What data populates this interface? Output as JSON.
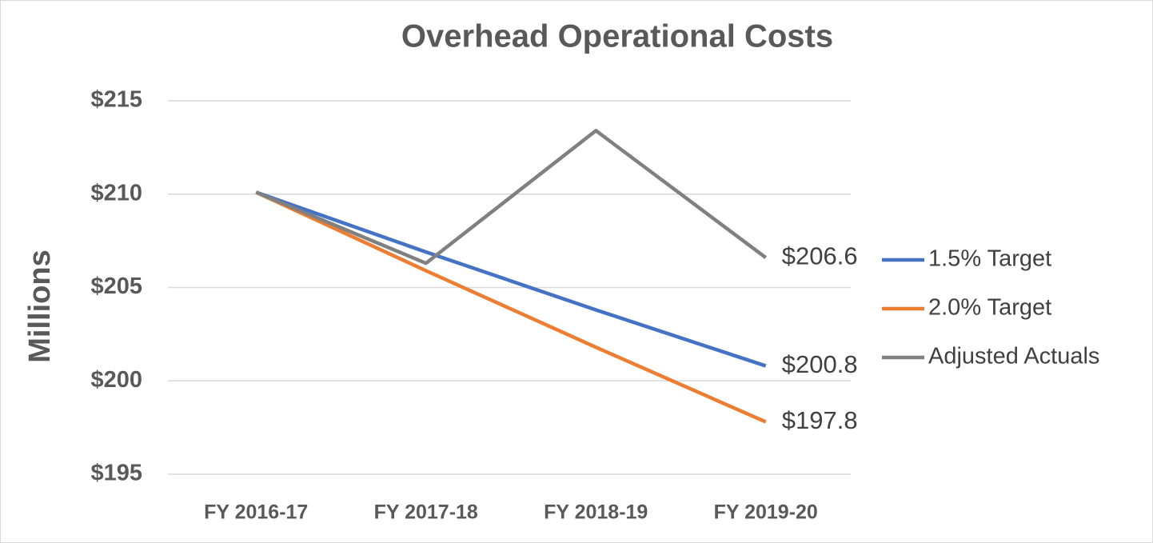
{
  "chart_data": {
    "type": "line",
    "title": "Overhead Operational  Costs",
    "y_label": "Millions",
    "categories": [
      "FY 2016-17",
      "FY 2017-18",
      "FY 2018-19",
      "FY 2019-20"
    ],
    "series": [
      {
        "name": "1.5% Target",
        "color": "#4472c4",
        "values": [
          210.1,
          206.9,
          203.8,
          200.8
        ],
        "value_labels": [
          null,
          null,
          null,
          "$200.8"
        ]
      },
      {
        "name": "2.0% Target",
        "color": "#ed7d31",
        "values": [
          210.1,
          205.9,
          201.8,
          197.8
        ],
        "value_labels": [
          null,
          null,
          null,
          "$197.8"
        ]
      },
      {
        "name": "Adjusted Actuals",
        "color": "#808080",
        "values": [
          210.1,
          206.3,
          213.4,
          206.6
        ],
        "value_labels": [
          null,
          null,
          null,
          "$206.6"
        ]
      }
    ],
    "ylim": [
      195,
      215
    ],
    "yticks": [
      {
        "value": 195,
        "label": "$195"
      },
      {
        "value": 200,
        "label": "$200"
      },
      {
        "value": 205,
        "label": "$205"
      },
      {
        "value": 210,
        "label": "$210"
      },
      {
        "value": 215,
        "label": "$215"
      }
    ],
    "grid": true,
    "legend": "right"
  }
}
